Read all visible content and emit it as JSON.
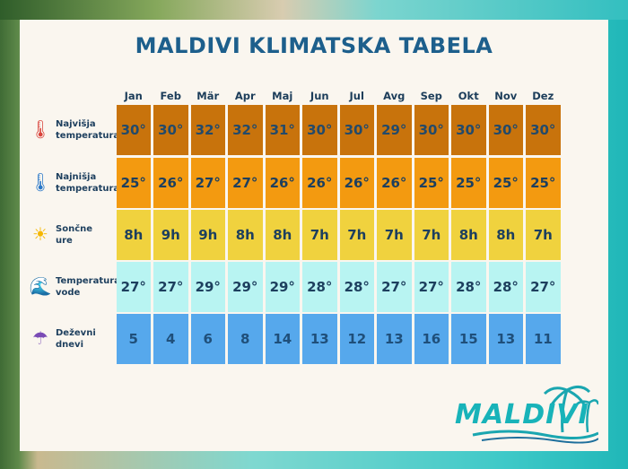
{
  "title": "MALDIVI KLIMATSKA TABELA",
  "months": [
    "Jan",
    "Feb",
    "Mär",
    "Apr",
    "Maj",
    "Jun",
    "Jul",
    "Avg",
    "Sep",
    "Okt",
    "Nov",
    "Dez"
  ],
  "rows": [
    {
      "label1": "Najvišja",
      "label2": "temperatura",
      "icon": "thermometer-red-icon",
      "color": "#c8730c",
      "values": [
        "30°",
        "30°",
        "32°",
        "32°",
        "31°",
        "30°",
        "30°",
        "29°",
        "30°",
        "30°",
        "30°",
        "30°"
      ]
    },
    {
      "label1": "Najnišja",
      "label2": "temperatura",
      "icon": "thermometer-blue-icon",
      "color": "#f39a10",
      "values": [
        "25°",
        "26°",
        "27°",
        "27°",
        "26°",
        "26°",
        "26°",
        "26°",
        "25°",
        "25°",
        "25°",
        "25°"
      ]
    },
    {
      "label1": "Sončne",
      "label2": "ure",
      "icon": "sun-icon",
      "color": "#f0d23e",
      "values": [
        "8h",
        "9h",
        "9h",
        "8h",
        "8h",
        "7h",
        "7h",
        "7h",
        "7h",
        "8h",
        "8h",
        "7h"
      ]
    },
    {
      "label1": "Temperatura",
      "label2": "vode",
      "icon": "wave-icon",
      "color": "#b8f4f2",
      "values": [
        "27°",
        "27°",
        "29°",
        "29°",
        "29°",
        "28°",
        "28°",
        "27°",
        "27°",
        "28°",
        "28°",
        "27°"
      ]
    },
    {
      "label1": "Deževni",
      "label2": "dnevi",
      "icon": "umbrella-icon",
      "color": "#56a8ec",
      "values": [
        "5",
        "4",
        "6",
        "8",
        "14",
        "13",
        "12",
        "13",
        "16",
        "15",
        "13",
        "11"
      ]
    }
  ],
  "logo": "MALDIVI"
}
